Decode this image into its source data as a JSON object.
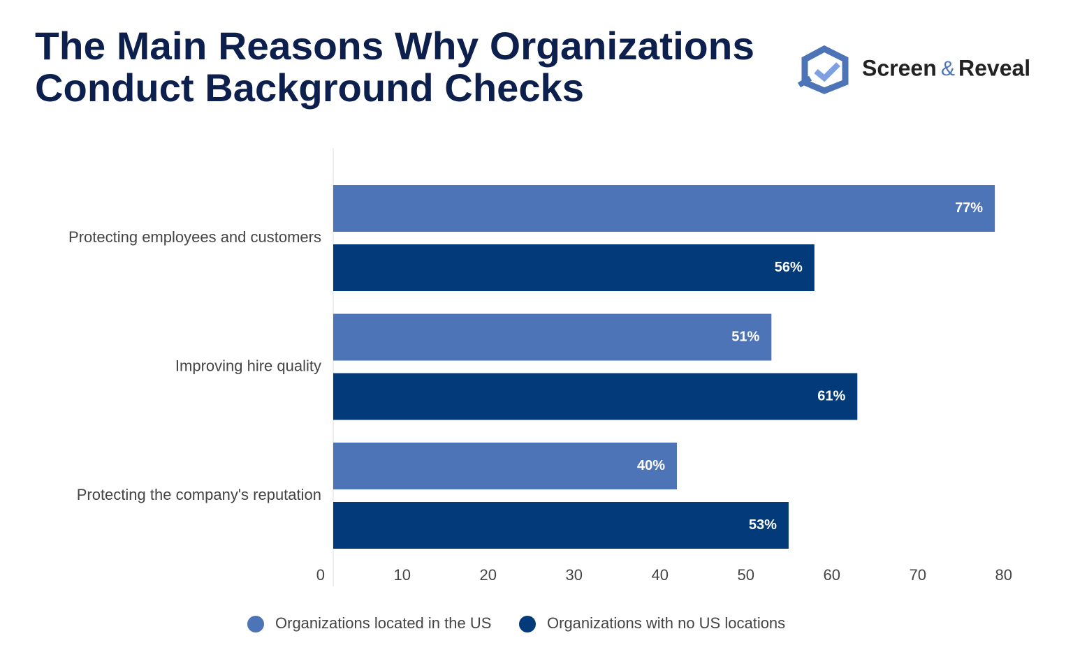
{
  "chart_data": {
    "type": "hbar",
    "title": [
      "The Main Reasons Why Organizations",
      "Conduct Background Checks"
    ],
    "logo": {
      "word1": "Screen",
      "amp": "&",
      "word2": "Reveal"
    },
    "categories": [
      "Protecting employees and customers",
      "Improving hire quality",
      "Protecting the company's reputation"
    ],
    "series": [
      {
        "name": "Organizations located in the US",
        "color": "#4e74b8",
        "values": [
          77,
          51,
          40
        ],
        "value_labels": [
          "77%",
          "51%",
          "40%"
        ]
      },
      {
        "name": "Organizations with no US locations",
        "color": "#033a7a",
        "values": [
          56,
          61,
          53
        ],
        "value_labels": [
          "56%",
          "61%",
          "53%"
        ]
      }
    ],
    "xlim": [
      0,
      80
    ],
    "xticks": [
      0,
      10,
      20,
      30,
      40,
      50,
      60,
      70,
      80
    ]
  }
}
